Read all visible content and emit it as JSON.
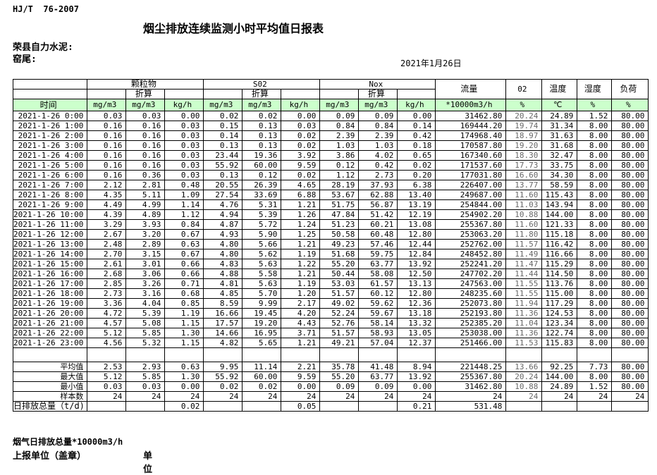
{
  "page": {
    "standard": "HJ/T  76-2007",
    "title": "烟尘排放连续监测小时平均值日报表",
    "company": "荣县自力水泥:",
    "location": "窑尾:",
    "date": "2021年1月26日"
  },
  "colors": {
    "header_row_bg": "#ccffcc",
    "border": "#000000",
    "o2_text": "#666666"
  },
  "table": {
    "time_header": "时间",
    "pollutant_groups": [
      "颗粒物",
      "S02",
      "Nox"
    ],
    "converted_label": "折算",
    "merged_headers": [
      "流量",
      "02",
      "温度",
      "湿度",
      "负荷"
    ],
    "units": [
      "mg/m3",
      "mg/m3",
      "kg/h",
      "mg/m3",
      "mg/m3",
      "kg/h",
      "mg/m3",
      "mg/m3",
      "kg/h",
      "*10000m3/h",
      "%",
      "℃",
      "%",
      "%"
    ],
    "rows": [
      {
        "time": "2021-1-26  0:00",
        "values": [
          "0.03",
          "0.03",
          "0.00",
          "0.02",
          "0.02",
          "0.00",
          "0.09",
          "0.09",
          "0.00",
          "31462.80",
          "20.24",
          "24.89",
          "1.52",
          "80.00"
        ]
      },
      {
        "time": "2021-1-26  1:00",
        "values": [
          "0.16",
          "0.16",
          "0.03",
          "0.15",
          "0.13",
          "0.03",
          "0.84",
          "0.84",
          "0.14",
          "169444.20",
          "19.74",
          "31.34",
          "8.00",
          "80.00"
        ]
      },
      {
        "time": "2021-1-26  2:00",
        "values": [
          "0.16",
          "0.16",
          "0.03",
          "0.14",
          "0.13",
          "0.02",
          "2.39",
          "2.39",
          "0.42",
          "174968.40",
          "18.97",
          "31.63",
          "8.00",
          "80.00"
        ]
      },
      {
        "time": "2021-1-26  3:00",
        "values": [
          "0.16",
          "0.16",
          "0.03",
          "0.13",
          "0.13",
          "0.02",
          "1.03",
          "1.03",
          "0.18",
          "170587.80",
          "19.20",
          "31.68",
          "8.00",
          "80.00"
        ]
      },
      {
        "time": "2021-1-26  4:00",
        "values": [
          "0.16",
          "0.16",
          "0.03",
          "23.44",
          "19.36",
          "3.92",
          "3.86",
          "4.02",
          "0.65",
          "167340.60",
          "18.30",
          "32.47",
          "8.00",
          "80.00"
        ]
      },
      {
        "time": "2021-1-26  5:00",
        "values": [
          "0.16",
          "0.16",
          "0.03",
          "55.92",
          "60.00",
          "9.59",
          "0.12",
          "0.42",
          "0.02",
          "171537.60",
          "17.73",
          "33.75",
          "8.00",
          "80.00"
        ]
      },
      {
        "time": "2021-1-26  6:00",
        "values": [
          "0.16",
          "0.36",
          "0.03",
          "0.13",
          "0.12",
          "0.02",
          "1.12",
          "2.73",
          "0.20",
          "177031.80",
          "16.60",
          "34.30",
          "8.00",
          "80.00"
        ]
      },
      {
        "time": "2021-1-26  7:00",
        "values": [
          "2.12",
          "2.81",
          "0.48",
          "20.55",
          "26.39",
          "4.65",
          "28.19",
          "37.93",
          "6.38",
          "226407.00",
          "13.77",
          "58.59",
          "8.00",
          "80.00"
        ]
      },
      {
        "time": "2021-1-26  8:00",
        "values": [
          "4.35",
          "5.11",
          "1.09",
          "27.54",
          "33.69",
          "6.88",
          "53.67",
          "62.88",
          "13.40",
          "249687.00",
          "11.60",
          "115.43",
          "8.00",
          "80.00"
        ]
      },
      {
        "time": "2021-1-26  9:00",
        "values": [
          "4.49",
          "4.99",
          "1.14",
          "4.76",
          "5.31",
          "1.21",
          "51.75",
          "56.87",
          "13.19",
          "254844.00",
          "11.03",
          "143.94",
          "8.00",
          "80.00"
        ]
      },
      {
        "time": "2021-1-26 10:00",
        "values": [
          "4.39",
          "4.89",
          "1.12",
          "4.94",
          "5.39",
          "1.26",
          "47.84",
          "51.42",
          "12.19",
          "254902.20",
          "10.88",
          "144.00",
          "8.00",
          "80.00"
        ]
      },
      {
        "time": "2021-1-26 11:00",
        "values": [
          "3.29",
          "3.93",
          "0.84",
          "4.87",
          "5.72",
          "1.24",
          "51.23",
          "60.21",
          "13.08",
          "255367.80",
          "11.60",
          "121.33",
          "8.00",
          "80.00"
        ]
      },
      {
        "time": "2021-1-26 12:00",
        "values": [
          "2.67",
          "3.20",
          "0.67",
          "4.93",
          "5.90",
          "1.25",
          "50.58",
          "60.48",
          "12.80",
          "253063.20",
          "11.80",
          "115.18",
          "8.00",
          "80.00"
        ]
      },
      {
        "time": "2021-1-26 13:00",
        "values": [
          "2.48",
          "2.89",
          "0.63",
          "4.80",
          "5.66",
          "1.21",
          "49.23",
          "57.46",
          "12.44",
          "252762.00",
          "11.57",
          "116.42",
          "8.00",
          "80.00"
        ]
      },
      {
        "time": "2021-1-26 14:00",
        "values": [
          "2.70",
          "3.15",
          "0.67",
          "4.80",
          "5.62",
          "1.19",
          "51.68",
          "59.75",
          "12.84",
          "248452.80",
          "11.49",
          "116.66",
          "8.00",
          "80.00"
        ]
      },
      {
        "time": "2021-1-26 15:00",
        "values": [
          "2.61",
          "3.01",
          "0.66",
          "4.83",
          "5.63",
          "1.22",
          "55.20",
          "63.77",
          "13.92",
          "252241.20",
          "11.47",
          "115.29",
          "8.00",
          "80.00"
        ]
      },
      {
        "time": "2021-1-26 16:00",
        "values": [
          "2.68",
          "3.06",
          "0.66",
          "4.88",
          "5.58",
          "1.21",
          "50.44",
          "58.08",
          "12.50",
          "247702.20",
          "11.44",
          "114.50",
          "8.00",
          "80.00"
        ]
      },
      {
        "time": "2021-1-26 17:00",
        "values": [
          "2.85",
          "3.26",
          "0.71",
          "4.81",
          "5.63",
          "1.19",
          "53.03",
          "61.57",
          "13.13",
          "247563.00",
          "11.55",
          "113.76",
          "8.00",
          "80.00"
        ]
      },
      {
        "time": "2021-1-26 18:00",
        "values": [
          "2.73",
          "3.16",
          "0.68",
          "4.85",
          "5.70",
          "1.20",
          "51.57",
          "60.12",
          "12.80",
          "248235.60",
          "11.55",
          "115.00",
          "8.00",
          "80.00"
        ]
      },
      {
        "time": "2021-1-26 19:00",
        "values": [
          "3.36",
          "4.04",
          "0.85",
          "8.59",
          "9.99",
          "2.17",
          "49.02",
          "59.62",
          "12.36",
          "252073.80",
          "11.94",
          "117.29",
          "8.00",
          "80.00"
        ]
      },
      {
        "time": "2021-1-26 20:00",
        "values": [
          "4.72",
          "5.39",
          "1.19",
          "16.66",
          "19.45",
          "4.20",
          "52.24",
          "59.67",
          "13.18",
          "252193.80",
          "11.36",
          "124.53",
          "8.00",
          "80.00"
        ]
      },
      {
        "time": "2021-1-26 21:00",
        "values": [
          "4.57",
          "5.08",
          "1.15",
          "17.57",
          "19.20",
          "4.43",
          "52.76",
          "58.14",
          "13.32",
          "252385.20",
          "11.04",
          "123.34",
          "8.00",
          "80.00"
        ]
      },
      {
        "time": "2021-1-26 22:00",
        "values": [
          "5.12",
          "5.85",
          "1.30",
          "14.66",
          "16.95",
          "3.71",
          "51.57",
          "58.93",
          "13.05",
          "253038.00",
          "11.36",
          "122.74",
          "8.00",
          "80.00"
        ]
      },
      {
        "time": "2021-1-26 23:00",
        "values": [
          "4.56",
          "5.32",
          "1.15",
          "4.82",
          "5.65",
          "1.21",
          "49.21",
          "57.04",
          "12.37",
          "251466.00",
          "11.53",
          "115.83",
          "8.00",
          "80.00"
        ]
      }
    ],
    "summary": [
      {
        "label": "平均值",
        "values": [
          "2.53",
          "2.93",
          "0.63",
          "9.95",
          "11.14",
          "2.21",
          "35.78",
          "41.48",
          "8.94",
          "221448.25",
          "13.66",
          "92.25",
          "7.73",
          "80.00"
        ]
      },
      {
        "label": "最大值",
        "values": [
          "5.12",
          "5.85",
          "1.30",
          "55.92",
          "60.00",
          "9.59",
          "55.20",
          "63.77",
          "13.92",
          "255367.80",
          "20.24",
          "144.00",
          "8.00",
          "80.00"
        ]
      },
      {
        "label": "最小值",
        "values": [
          "0.03",
          "0.03",
          "0.00",
          "0.02",
          "0.02",
          "0.00",
          "0.09",
          "0.09",
          "0.00",
          "31462.80",
          "10.88",
          "24.89",
          "1.52",
          "80.00"
        ]
      },
      {
        "label": "样本数",
        "values": [
          "24",
          "24",
          "24",
          "24",
          "24",
          "24",
          "24",
          "24",
          "24",
          "24",
          "24",
          "24",
          "24",
          "24"
        ]
      },
      {
        "label": "日排放总量（t/d)",
        "values": [
          "",
          "",
          "0.02",
          "",
          "",
          "0.05",
          "",
          "",
          "0.21",
          "531.48",
          "",
          "",
          "",
          ""
        ]
      }
    ]
  },
  "footer": {
    "flue_gas_total_label": "烟气日排放总量*10000m3/h",
    "report_unit_label": "上报单位（盖章）",
    "unit_label": "单位"
  }
}
